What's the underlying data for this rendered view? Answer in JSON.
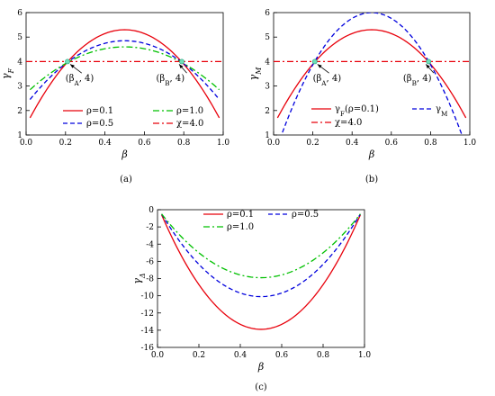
{
  "chart_data": [
    {
      "id": "a",
      "type": "line",
      "caption": "(a)",
      "xlabel": "β",
      "ylabel": "γ",
      "ylabel_sub": "F",
      "xlim": [
        0.0,
        1.0
      ],
      "ylim": [
        1,
        6
      ],
      "xticks": [
        "0.0",
        "0.2",
        "0.4",
        "0.6",
        "0.8",
        "1.0"
      ],
      "yticks": [
        "1",
        "2",
        "3",
        "4",
        "5",
        "6"
      ],
      "series": [
        {
          "name": "ρ=0.1",
          "color": "#e8000b",
          "dash": "solid",
          "form": "parabola",
          "ends": 1.7,
          "peak": 5.3
        },
        {
          "name": "ρ=0.5",
          "color": "#0000dd",
          "dash": "dash",
          "form": "parabola",
          "ends": 2.45,
          "peak": 4.85
        },
        {
          "name": "ρ=1.0",
          "color": "#00c000",
          "dash": "dashdot",
          "form": "parabola",
          "ends": 2.85,
          "peak": 4.6
        },
        {
          "name": "χ=4.0",
          "color": "#e8000b",
          "dash": "dashdot",
          "form": "constant",
          "value": 4.0
        }
      ],
      "points": [
        {
          "x": 0.21,
          "y": 4.0
        },
        {
          "x": 0.79,
          "y": 4.0
        }
      ],
      "annotations": [
        {
          "text": "(β",
          "sub": "A",
          "tail": ", 4)",
          "target": [
            0.21,
            4.0
          ],
          "text_at": [
            0.2,
            3.2
          ]
        },
        {
          "text": "(β",
          "sub": "B",
          "tail": ", 4)",
          "target": [
            0.79,
            4.0
          ],
          "text_at": [
            0.66,
            3.2
          ]
        }
      ]
    },
    {
      "id": "b",
      "type": "line",
      "caption": "(b)",
      "xlabel": "β",
      "ylabel": "γ",
      "ylabel_sub": "M",
      "xlim": [
        0.0,
        1.0
      ],
      "ylim": [
        1,
        6
      ],
      "xticks": [
        "0.0",
        "0.2",
        "0.4",
        "0.6",
        "0.8",
        "1.0"
      ],
      "yticks": [
        "1",
        "2",
        "3",
        "4",
        "5",
        "6"
      ],
      "series": [
        {
          "name": "γ",
          "name_sub": "F",
          "name_tail": "(ρ=0.1)",
          "color": "#e8000b",
          "dash": "solid",
          "form": "parabola",
          "ends": 1.7,
          "peak": 5.3
        },
        {
          "name": "γ",
          "name_sub": "M",
          "name_tail": "",
          "color": "#0000dd",
          "dash": "dash",
          "form": "parabola",
          "ends": 0.55,
          "peak": 6.0
        },
        {
          "name": "χ=4.0",
          "color": "#e8000b",
          "dash": "dashdot",
          "form": "constant",
          "value": 4.0
        }
      ],
      "points": [
        {
          "x": 0.21,
          "y": 4.0
        },
        {
          "x": 0.79,
          "y": 4.0
        }
      ],
      "annotations": [
        {
          "text": "(β",
          "sub": "A",
          "tail": ", 4)",
          "target": [
            0.21,
            4.0
          ],
          "text_at": [
            0.2,
            3.2
          ]
        },
        {
          "text": "(β",
          "sub": "B",
          "tail": ", 4)",
          "target": [
            0.79,
            4.0
          ],
          "text_at": [
            0.66,
            3.2
          ]
        }
      ]
    },
    {
      "id": "c",
      "type": "line",
      "caption": "(c)",
      "xlabel": "β",
      "ylabel": "γ",
      "ylabel_sub": "Δ",
      "xlim": [
        0.0,
        1.0
      ],
      "ylim": [
        -16,
        0
      ],
      "xticks": [
        "0.0",
        "0.2",
        "0.4",
        "0.6",
        "0.8",
        "1.0"
      ],
      "yticks": [
        "-16",
        "-14",
        "-12",
        "-10",
        "-8",
        "-6",
        "-4",
        "-2",
        "0"
      ],
      "series": [
        {
          "name": "ρ=0.1",
          "color": "#e8000b",
          "dash": "solid",
          "form": "parabola",
          "ends": -0.6,
          "peak": -13.9
        },
        {
          "name": "ρ=0.5",
          "color": "#0000dd",
          "dash": "dash",
          "form": "parabola",
          "ends": -0.5,
          "peak": -10.1
        },
        {
          "name": "ρ=1.0",
          "color": "#00c000",
          "dash": "dashdot",
          "form": "parabola",
          "ends": -0.5,
          "peak": -7.9
        }
      ]
    }
  ]
}
